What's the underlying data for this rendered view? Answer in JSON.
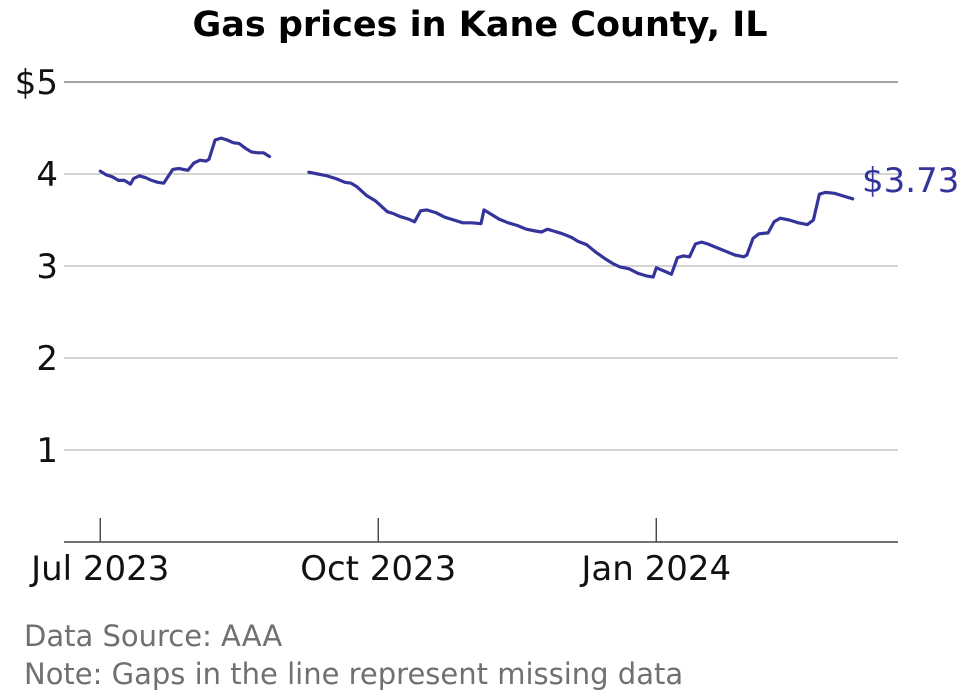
{
  "chart_data": {
    "type": "line",
    "title": "Gas prices in Kane County, IL",
    "xlabel": "",
    "ylabel": "",
    "x_ticks": [
      "Jul 2023",
      "Oct 2023",
      "Jan 2024"
    ],
    "y_ticks": [
      "$5",
      "4",
      "3",
      "2",
      "1"
    ],
    "ylim": [
      0,
      5
    ],
    "xlim": [
      "2023-06-19",
      "2024-03-21"
    ],
    "grid": "horizontal",
    "line_color": "#35349a",
    "end_label": "$3.73",
    "source": "Data Source: AAA",
    "note": "Note: Gaps in the line represent missing data",
    "series": [
      {
        "segments": [
          [
            [
              "2023-07-01",
              4.03
            ],
            [
              "2023-07-03",
              3.99
            ],
            [
              "2023-07-05",
              3.97
            ],
            [
              "2023-07-07",
              3.93
            ],
            [
              "2023-07-09",
              3.93
            ],
            [
              "2023-07-11",
              3.89
            ],
            [
              "2023-07-12",
              3.95
            ],
            [
              "2023-07-14",
              3.98
            ],
            [
              "2023-07-16",
              3.96
            ],
            [
              "2023-07-18",
              3.93
            ],
            [
              "2023-07-20",
              3.91
            ],
            [
              "2023-07-22",
              3.9
            ],
            [
              "2023-07-23",
              3.95
            ],
            [
              "2023-07-25",
              4.05
            ],
            [
              "2023-07-27",
              4.06
            ],
            [
              "2023-07-30",
              4.04
            ],
            [
              "2023-08-01",
              4.12
            ],
            [
              "2023-08-03",
              4.15
            ],
            [
              "2023-08-05",
              4.14
            ],
            [
              "2023-08-06",
              4.16
            ],
            [
              "2023-08-08",
              4.37
            ],
            [
              "2023-08-10",
              4.39
            ],
            [
              "2023-08-12",
              4.37
            ],
            [
              "2023-08-14",
              4.34
            ],
            [
              "2023-08-16",
              4.33
            ],
            [
              "2023-08-18",
              4.28
            ],
            [
              "2023-08-20",
              4.24
            ],
            [
              "2023-08-22",
              4.23
            ],
            [
              "2023-08-24",
              4.23
            ],
            [
              "2023-08-26",
              4.19
            ]
          ],
          [
            [
              "2023-09-08",
              4.02
            ],
            [
              "2023-09-11",
              4.0
            ],
            [
              "2023-09-14",
              3.98
            ],
            [
              "2023-09-17",
              3.95
            ],
            [
              "2023-09-20",
              3.91
            ],
            [
              "2023-09-22",
              3.9
            ],
            [
              "2023-09-24",
              3.86
            ],
            [
              "2023-09-27",
              3.77
            ],
            [
              "2023-09-30",
              3.71
            ],
            [
              "2023-10-02",
              3.65
            ],
            [
              "2023-10-04",
              3.59
            ],
            [
              "2023-10-06",
              3.57
            ],
            [
              "2023-10-08",
              3.54
            ],
            [
              "2023-10-11",
              3.51
            ],
            [
              "2023-10-13",
              3.48
            ],
            [
              "2023-10-15",
              3.6
            ],
            [
              "2023-10-17",
              3.61
            ],
            [
              "2023-10-20",
              3.58
            ],
            [
              "2023-10-23",
              3.53
            ],
            [
              "2023-10-26",
              3.5
            ],
            [
              "2023-10-29",
              3.47
            ],
            [
              "2023-11-01",
              3.47
            ],
            [
              "2023-11-04",
              3.46
            ],
            [
              "2023-11-05",
              3.61
            ],
            [
              "2023-11-07",
              3.57
            ],
            [
              "2023-11-10",
              3.51
            ],
            [
              "2023-11-13",
              3.47
            ],
            [
              "2023-11-16",
              3.44
            ],
            [
              "2023-11-19",
              3.4
            ],
            [
              "2023-11-22",
              3.38
            ],
            [
              "2023-11-24",
              3.37
            ],
            [
              "2023-11-26",
              3.4
            ],
            [
              "2023-11-28",
              3.38
            ],
            [
              "2023-12-01",
              3.35
            ],
            [
              "2023-12-04",
              3.31
            ],
            [
              "2023-12-06",
              3.27
            ],
            [
              "2023-12-09",
              3.23
            ],
            [
              "2023-12-12",
              3.15
            ],
            [
              "2023-12-15",
              3.08
            ],
            [
              "2023-12-18",
              3.02
            ],
            [
              "2023-12-20",
              2.99
            ],
            [
              "2023-12-23",
              2.97
            ],
            [
              "2023-12-26",
              2.92
            ],
            [
              "2023-12-29",
              2.89
            ],
            [
              "2023-12-31",
              2.88
            ],
            [
              "2024-01-01",
              2.98
            ],
            [
              "2024-01-04",
              2.94
            ],
            [
              "2024-01-06",
              2.91
            ],
            [
              "2024-01-08",
              3.09
            ],
            [
              "2024-01-10",
              3.11
            ],
            [
              "2024-01-12",
              3.1
            ],
            [
              "2024-01-14",
              3.24
            ],
            [
              "2024-01-16",
              3.26
            ],
            [
              "2024-01-18",
              3.24
            ],
            [
              "2024-01-21",
              3.2
            ],
            [
              "2024-01-24",
              3.16
            ],
            [
              "2024-01-27",
              3.12
            ],
            [
              "2024-01-30",
              3.1
            ],
            [
              "2024-01-31",
              3.12
            ],
            [
              "2024-02-02",
              3.3
            ],
            [
              "2024-02-04",
              3.35
            ],
            [
              "2024-02-07",
              3.36
            ],
            [
              "2024-02-09",
              3.48
            ],
            [
              "2024-02-11",
              3.52
            ],
            [
              "2024-02-14",
              3.5
            ],
            [
              "2024-02-17",
              3.47
            ],
            [
              "2024-02-20",
              3.45
            ],
            [
              "2024-02-22",
              3.5
            ],
            [
              "2024-02-24",
              3.78
            ],
            [
              "2024-02-26",
              3.8
            ],
            [
              "2024-02-29",
              3.79
            ],
            [
              "2024-03-03",
              3.76
            ],
            [
              "2024-03-06",
              3.73
            ]
          ]
        ]
      }
    ]
  }
}
